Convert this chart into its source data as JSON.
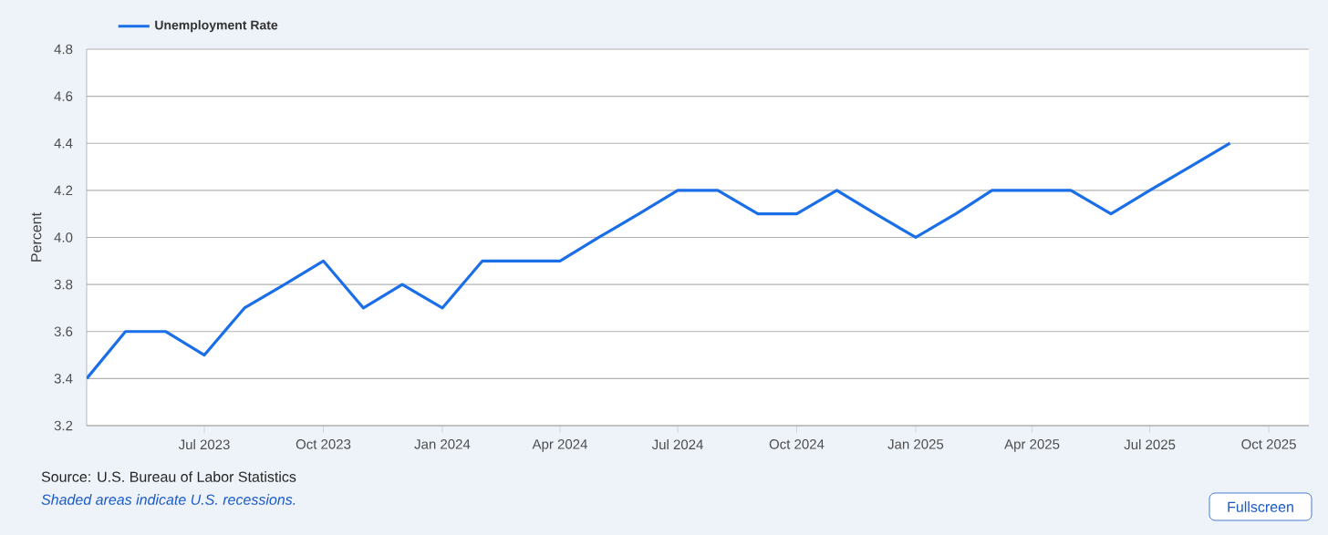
{
  "chart_data": {
    "type": "line",
    "ylabel": "Percent",
    "x": [
      "2023-04",
      "2023-05",
      "2023-06",
      "2023-07",
      "2023-08",
      "2023-09",
      "2023-10",
      "2023-11",
      "2023-12",
      "2024-01",
      "2024-02",
      "2024-03",
      "2024-04",
      "2024-05",
      "2024-06",
      "2024-07",
      "2024-08",
      "2024-09",
      "2024-10",
      "2024-11",
      "2024-12",
      "2025-01",
      "2025-02",
      "2025-03",
      "2025-04",
      "2025-05",
      "2025-06",
      "2025-07",
      "2025-08",
      "2025-09"
    ],
    "series": [
      {
        "name": "Unemployment Rate",
        "color": "#1a6fe8",
        "values": [
          3.4,
          3.6,
          3.6,
          3.5,
          3.7,
          3.8,
          3.9,
          3.7,
          3.8,
          3.7,
          3.9,
          3.9,
          3.9,
          4.0,
          4.1,
          4.2,
          4.2,
          4.1,
          4.1,
          4.2,
          4.1,
          4.0,
          4.1,
          4.2,
          4.2,
          4.2,
          4.1,
          4.2,
          4.3,
          4.4
        ]
      }
    ],
    "xlim": [
      "2023-04",
      "2025-11"
    ],
    "xticks": [
      {
        "value": "2023-07",
        "label": "Jul 2023"
      },
      {
        "value": "2023-10",
        "label": "Oct 2023"
      },
      {
        "value": "2024-01",
        "label": "Jan 2024"
      },
      {
        "value": "2024-04",
        "label": "Apr 2024"
      },
      {
        "value": "2024-07",
        "label": "Jul 2024"
      },
      {
        "value": "2024-10",
        "label": "Oct 2024"
      },
      {
        "value": "2025-01",
        "label": "Jan 2025"
      },
      {
        "value": "2025-04",
        "label": "Apr 2025"
      },
      {
        "value": "2025-07",
        "label": "Jul 2025"
      },
      {
        "value": "2025-10",
        "label": "Oct 2025"
      }
    ],
    "ylim": [
      3.2,
      4.8
    ],
    "yticks": [
      {
        "value": 3.2,
        "label": "3.2"
      },
      {
        "value": 3.4,
        "label": "3.4"
      },
      {
        "value": 3.6,
        "label": "3.6"
      },
      {
        "value": 3.8,
        "label": "3.8"
      },
      {
        "value": 4.0,
        "label": "4.0"
      },
      {
        "value": 4.2,
        "label": "4.2"
      },
      {
        "value": 4.4,
        "label": "4.4"
      },
      {
        "value": 4.6,
        "label": "4.6"
      },
      {
        "value": 4.8,
        "label": "4.8"
      }
    ],
    "grid": "y",
    "legend": "top left",
    "marker": "none",
    "line_style": "solid",
    "annotations": [
      "Source: U.S. Bureau of Labor Statistics",
      "*Shaded areas indicate U.S. recessions.*",
      "Fullscreen"
    ]
  }
}
